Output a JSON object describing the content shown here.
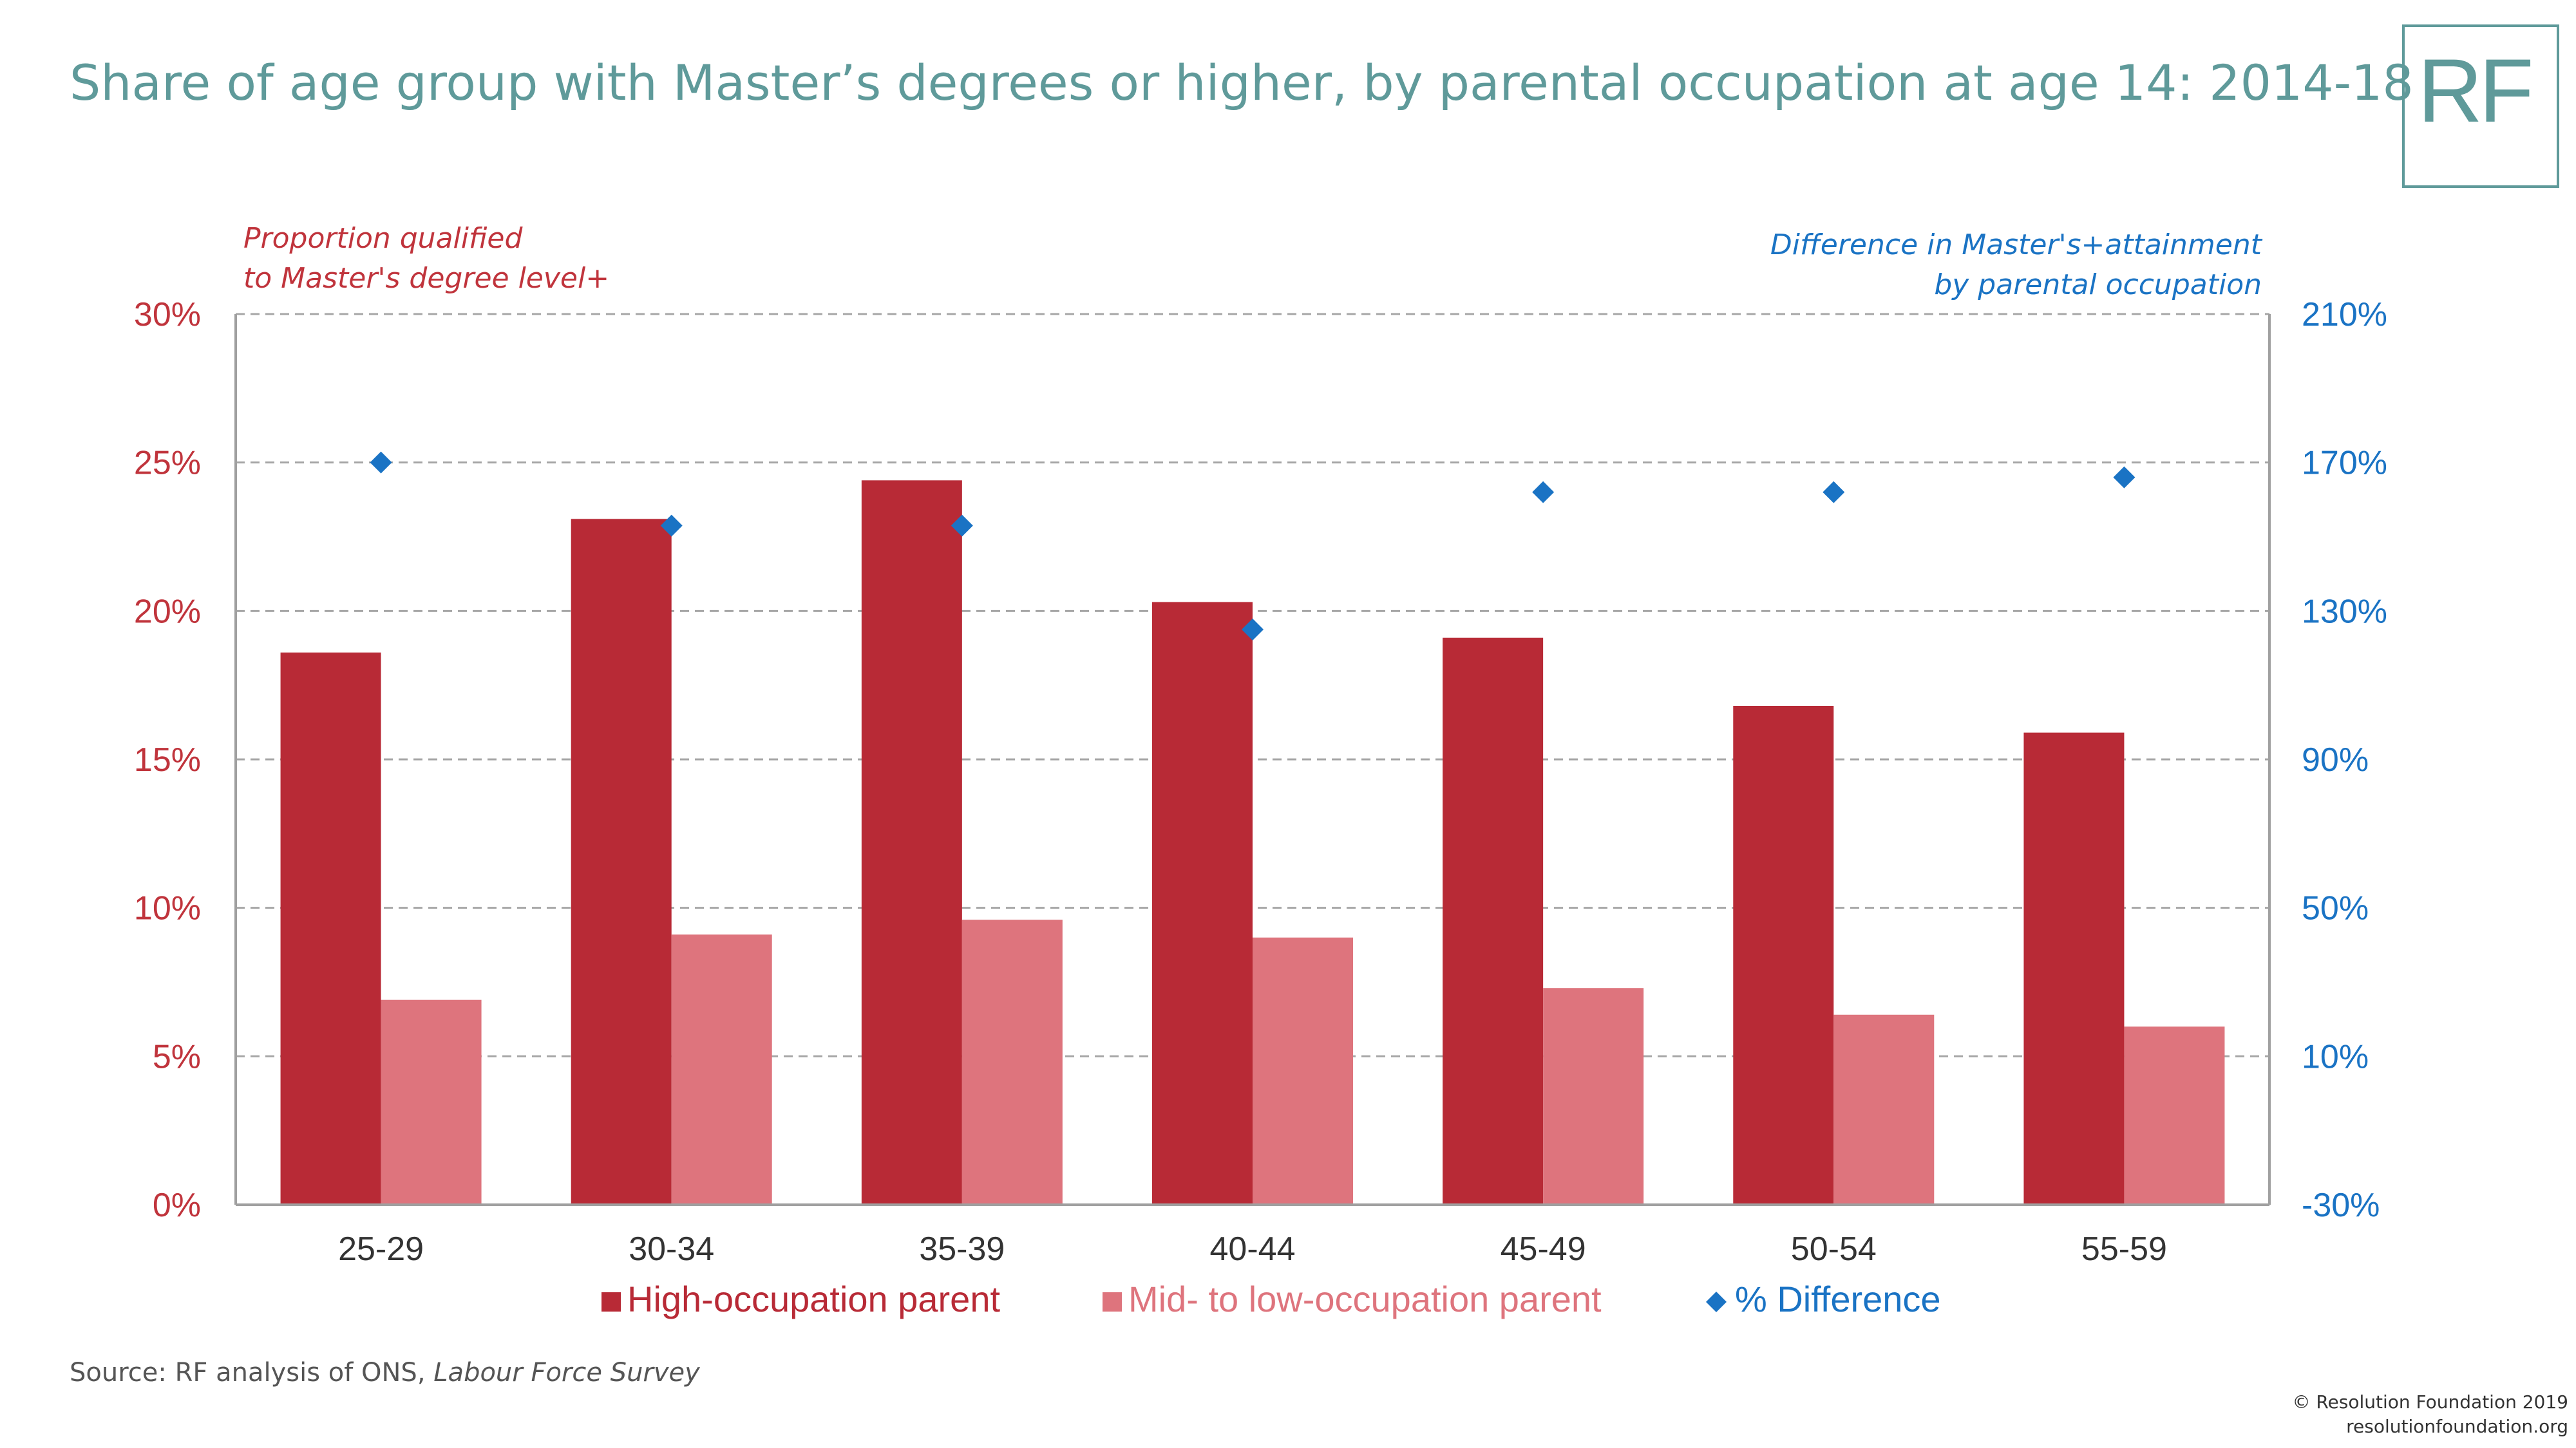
{
  "title": "Share of age group with Master’s degrees or higher, by parental occupation at age 14: 2014-18",
  "logo": "RF",
  "left_axis_note": [
    "Proportion qualified",
    "to Master's degree level+"
  ],
  "right_axis_note": [
    "Difference in Master's+attainment",
    "by parental occupation"
  ],
  "source_prefix": "Source: RF analysis of ONS, ",
  "source_italic": "Labour Force Survey",
  "copyright": [
    "© Resolution Foundation 2019",
    "resolutionfoundation.org"
  ],
  "colors": {
    "high": "#b82a36",
    "mid": "#de747d",
    "diff": "#1a73c4",
    "left_axis": "#c0343c",
    "grid": "#a6a6a6"
  },
  "chart_data": {
    "type": "bar",
    "categories": [
      "25-29",
      "30-34",
      "35-39",
      "40-44",
      "45-49",
      "50-54",
      "55-59"
    ],
    "series": [
      {
        "name": "High-occupation parent",
        "axis": "left",
        "values": [
          18.6,
          23.1,
          24.4,
          20.3,
          19.1,
          16.8,
          15.9
        ]
      },
      {
        "name": "Mid- to low-occupation parent",
        "axis": "left",
        "values": [
          6.9,
          9.1,
          9.6,
          9.0,
          7.3,
          6.4,
          6.0
        ]
      },
      {
        "name": "% Difference",
        "axis": "right",
        "marker": "diamond",
        "values": [
          170,
          153,
          153,
          125,
          162,
          162,
          166
        ]
      }
    ],
    "y_left": {
      "min": 0,
      "max": 30,
      "step": 5,
      "ticks": [
        "0%",
        "5%",
        "10%",
        "15%",
        "20%",
        "25%",
        "30%"
      ]
    },
    "y_right": {
      "min": -30,
      "max": 210,
      "step": 40,
      "ticks": [
        "-30%",
        "10%",
        "50%",
        "90%",
        "130%",
        "170%",
        "210%"
      ]
    },
    "grid": true,
    "legend_position": "bottom"
  }
}
